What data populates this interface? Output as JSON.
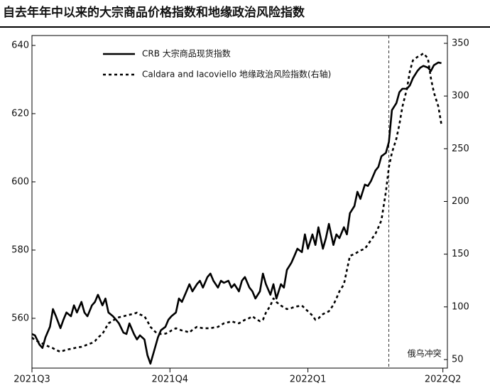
{
  "chart_data": {
    "type": "line",
    "title": "自去年年中以来的大宗商品价格指数和地缘政治风险指数",
    "x": [
      0,
      2,
      5,
      7,
      9,
      12,
      14,
      16,
      19,
      21,
      23,
      26,
      28,
      30,
      33,
      35,
      37,
      40,
      42,
      44,
      47,
      49,
      51,
      54,
      56,
      58,
      61,
      63,
      65,
      68,
      70,
      72,
      75,
      77,
      79,
      82,
      84,
      86,
      89,
      91,
      93,
      96,
      98,
      100,
      103,
      105,
      107,
      110,
      112,
      114,
      117,
      119,
      121,
      124,
      126,
      128,
      131,
      133,
      135,
      138,
      140,
      142,
      145,
      147,
      149,
      152,
      154,
      156,
      159,
      161,
      163,
      166,
      168,
      170,
      173,
      175,
      177,
      180,
      182,
      184,
      187,
      189,
      191,
      194,
      196,
      198,
      201,
      203,
      205,
      208,
      210,
      212,
      215,
      217,
      219,
      222,
      224,
      226,
      229,
      231,
      233,
      236,
      238,
      240,
      243,
      245,
      247,
      250,
      252,
      254,
      257,
      259,
      261,
      264,
      266,
      268,
      271,
      273
    ],
    "xlim": [
      0,
      277
    ],
    "xticks": [
      {
        "value": 0,
        "label": "2021Q3"
      },
      {
        "value": 92,
        "label": "2021Q4"
      },
      {
        "value": 184,
        "label": "2022Q1"
      },
      {
        "value": 274,
        "label": "2022Q2"
      }
    ],
    "ylim": [
      545.4,
      642.9
    ],
    "yticks": [
      560,
      580,
      600,
      620,
      640
    ],
    "y2lim": [
      41.9,
      357.4
    ],
    "y2ticks": [
      50,
      100,
      150,
      200,
      250,
      300,
      350
    ],
    "legend": "top-left",
    "series": [
      {
        "name": "CRB 大宗商品现货指数",
        "color": "#000000",
        "style": "solid",
        "values": [
          555.4,
          555.0,
          552.3,
          551.3,
          554.4,
          557.5,
          562.7,
          560.6,
          557.1,
          559.6,
          561.7,
          560.6,
          563.8,
          561.7,
          564.8,
          561.7,
          560.6,
          563.8,
          564.8,
          566.9,
          563.8,
          565.8,
          561.7,
          560.6,
          559.6,
          558.5,
          555.8,
          555.4,
          558.5,
          555.4,
          553.8,
          555.0,
          553.8,
          549.2,
          546.7,
          551.3,
          554.4,
          556.5,
          557.5,
          559.6,
          560.6,
          561.7,
          565.8,
          564.8,
          567.9,
          570.0,
          567.9,
          570.0,
          571.0,
          569.0,
          572.1,
          573.1,
          571.0,
          569.0,
          571.0,
          570.4,
          571.0,
          569.0,
          570.0,
          567.9,
          571.0,
          572.1,
          569.0,
          567.9,
          565.8,
          567.9,
          573.1,
          570.0,
          566.9,
          570.0,
          565.8,
          570.0,
          569.0,
          574.2,
          576.3,
          578.3,
          580.4,
          579.4,
          584.6,
          580.4,
          584.6,
          581.5,
          586.7,
          580.4,
          583.5,
          587.7,
          581.5,
          584.6,
          583.5,
          586.7,
          584.6,
          590.8,
          592.9,
          597.1,
          595.0,
          599.2,
          598.8,
          600.2,
          603.3,
          604.4,
          607.5,
          608.5,
          611.7,
          621.0,
          623.1,
          626.3,
          627.3,
          627.3,
          628.3,
          630.4,
          632.5,
          633.5,
          634.0,
          633.5,
          632.5,
          634.2,
          635.0,
          634.8
        ]
      },
      {
        "name": "Caldara and Iacoviello 地缘政治风险指数(右轴)",
        "color": "#000000",
        "style": "dotted",
        "axis": "y2",
        "values": [
          70.9,
          68.5,
          66.5,
          65.2,
          63.8,
          61.8,
          60.8,
          59.1,
          57.4,
          58.4,
          59.4,
          60.1,
          60.8,
          61.5,
          62.1,
          63.1,
          64.2,
          65.8,
          67.5,
          70.9,
          74.3,
          79.3,
          84.4,
          86.8,
          89.1,
          90.1,
          91.1,
          91.8,
          92.5,
          93.5,
          94.5,
          92.8,
          91.1,
          86.4,
          81.0,
          76.6,
          74.3,
          74.3,
          74.6,
          75.6,
          77.6,
          79.7,
          78.6,
          77.6,
          76.6,
          75.6,
          78.3,
          81.0,
          80.3,
          79.7,
          79.7,
          79.7,
          80.3,
          81.0,
          82.7,
          84.4,
          85.4,
          86.4,
          85.4,
          84.4,
          86.1,
          87.7,
          89.4,
          91.1,
          88.8,
          86.4,
          87.7,
          94.5,
          101.2,
          108.0,
          104.6,
          101.2,
          99.5,
          97.9,
          98.9,
          99.9,
          100.5,
          101.2,
          98.5,
          95.8,
          91.8,
          87.7,
          89.1,
          93.1,
          94.5,
          95.8,
          101.9,
          108.0,
          114.7,
          121.4,
          134.9,
          148.4,
          150.1,
          151.8,
          153.5,
          155.1,
          159.2,
          163.2,
          169.3,
          175.4,
          182.1,
          209.1,
          232.7,
          246.1,
          259.6,
          273.1,
          289.9,
          306.8,
          323.6,
          333.8,
          337.1,
          338.5,
          340.5,
          335.8,
          316.9,
          303.4,
          289.9,
          273.1
        ]
      }
    ],
    "annotations": [
      {
        "text": "俄乌冲突",
        "x": 238
      }
    ]
  }
}
